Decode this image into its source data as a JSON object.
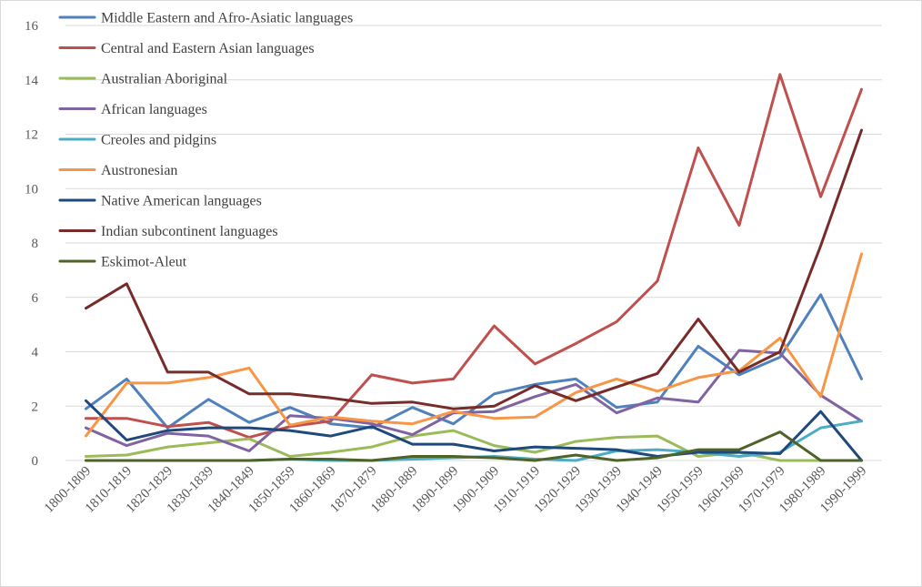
{
  "chart_data": {
    "type": "line",
    "title": "",
    "xlabel": "",
    "ylabel": "",
    "ylim": [
      0,
      16
    ],
    "y_ticks": [
      "0",
      "2",
      "4",
      "6",
      "8",
      "10",
      "12",
      "14",
      "16"
    ],
    "grid": true,
    "legend_position": "top-left",
    "categories": [
      "1800-1809",
      "1810-1819",
      "1820-1829",
      "1830-1839",
      "1840-1849",
      "1850-1859",
      "1860-1869",
      "1870-1879",
      "1880-1889",
      "1890-1899",
      "1900-1909",
      "1910-1919",
      "1920-1929",
      "1930-1939",
      "1940-1949",
      "1950-1959",
      "1960-1969",
      "1970-1979",
      "1980-1989",
      "1990-1999"
    ],
    "series": [
      {
        "name": "Middle Eastern and Afro-Asiatic languages",
        "color": "#4f81bd",
        "values": [
          1.9,
          3.0,
          1.2,
          2.25,
          1.4,
          1.95,
          1.35,
          1.2,
          1.95,
          1.35,
          2.45,
          2.8,
          3.0,
          1.95,
          2.15,
          4.2,
          3.15,
          3.8,
          6.1,
          3.0
        ]
      },
      {
        "name": "Central and Eastern Asian languages",
        "color": "#c0504d",
        "values": [
          1.55,
          1.55,
          1.25,
          1.4,
          0.85,
          1.25,
          1.45,
          3.15,
          2.85,
          3.0,
          4.95,
          3.55,
          4.3,
          5.1,
          6.6,
          11.5,
          8.65,
          14.2,
          9.7,
          13.65
        ]
      },
      {
        "name": "Australian Aboriginal",
        "color": "#9bbb59",
        "values": [
          0.15,
          0.2,
          0.5,
          0.65,
          0.8,
          0.15,
          0.3,
          0.5,
          0.9,
          1.1,
          0.55,
          0.3,
          0.7,
          0.85,
          0.9,
          0.15,
          0.3,
          0.0,
          0.0,
          0.0
        ]
      },
      {
        "name": "African languages",
        "color": "#8064a2",
        "values": [
          1.2,
          0.55,
          1.0,
          0.9,
          0.35,
          1.65,
          1.55,
          1.35,
          0.95,
          1.75,
          1.8,
          2.35,
          2.8,
          1.75,
          2.3,
          2.15,
          4.05,
          3.95,
          2.4,
          1.45
        ]
      },
      {
        "name": "Creoles and pidgins",
        "color": "#4bacc6",
        "values": [
          0.0,
          0.0,
          0.0,
          0.0,
          0.0,
          0.05,
          0.0,
          0.0,
          0.05,
          0.1,
          0.15,
          0.05,
          0.0,
          0.35,
          0.4,
          0.3,
          0.15,
          0.3,
          1.2,
          1.45
        ]
      },
      {
        "name": "Austronesian",
        "color": "#f79646",
        "values": [
          0.9,
          2.85,
          2.85,
          3.05,
          3.4,
          1.3,
          1.6,
          1.45,
          1.35,
          1.8,
          1.55,
          1.6,
          2.5,
          3.0,
          2.55,
          3.05,
          3.3,
          4.5,
          2.35,
          7.6
        ]
      },
      {
        "name": "Native American languages",
        "color": "#1f497d",
        "values": [
          2.2,
          0.75,
          1.1,
          1.2,
          1.2,
          1.1,
          0.9,
          1.25,
          0.6,
          0.6,
          0.35,
          0.5,
          0.45,
          0.4,
          0.15,
          0.3,
          0.3,
          0.25,
          1.8,
          0.0
        ]
      },
      {
        "name": "Indian subcontinent languages",
        "color": "#772c2a",
        "values": [
          5.6,
          6.5,
          3.25,
          3.25,
          2.45,
          2.45,
          2.3,
          2.1,
          2.15,
          1.9,
          2.0,
          2.75,
          2.2,
          2.7,
          3.2,
          5.2,
          3.25,
          4.0,
          7.9,
          12.15
        ]
      },
      {
        "name": "Eskimot-Aleut",
        "color": "#4f6228",
        "values": [
          0.0,
          0.0,
          0.0,
          0.0,
          0.0,
          0.05,
          0.05,
          0.0,
          0.15,
          0.15,
          0.1,
          0.0,
          0.2,
          0.0,
          0.1,
          0.4,
          0.4,
          1.05,
          0.0,
          0.0
        ]
      }
    ]
  }
}
